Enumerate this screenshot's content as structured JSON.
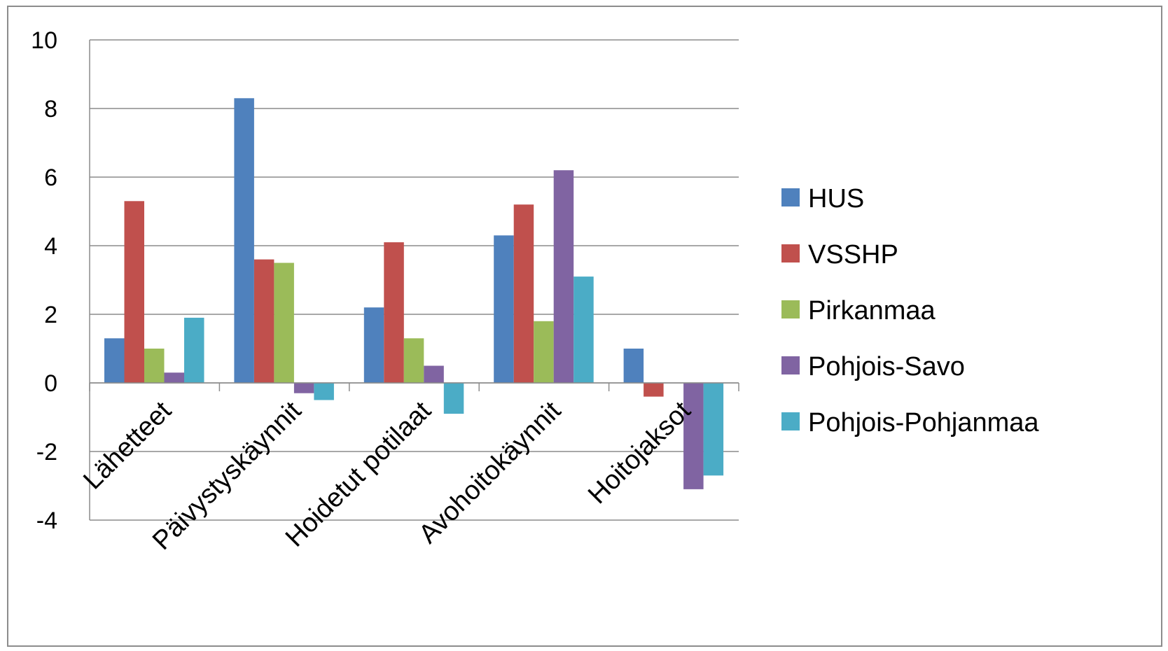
{
  "chart_data": {
    "type": "bar",
    "title": "",
    "xlabel": "",
    "ylabel": "",
    "categories": [
      "Lähetteet",
      "Päivystyskäynnit",
      "Hoidetut potilaat",
      "Avohoitokäynnit",
      "Hoitojaksot"
    ],
    "series": [
      {
        "name": "HUS",
        "color": "#4f81bd",
        "values": [
          1.3,
          8.3,
          2.2,
          4.3,
          1.0
        ]
      },
      {
        "name": "VSSHP",
        "color": "#c0504d",
        "values": [
          5.3,
          3.6,
          4.1,
          5.2,
          -0.4
        ]
      },
      {
        "name": "Pirkanmaa",
        "color": "#9bbb59",
        "values": [
          1.0,
          3.5,
          1.3,
          1.8,
          0.0
        ]
      },
      {
        "name": "Pohjois-Savo",
        "color": "#8064a2",
        "values": [
          0.3,
          -0.3,
          0.5,
          6.2,
          -3.1
        ]
      },
      {
        "name": "Pohjois-Pohjanmaa",
        "color": "#4bacc6",
        "values": [
          1.9,
          -0.5,
          -0.9,
          3.1,
          -2.7
        ]
      }
    ],
    "ylim": [
      -4,
      10
    ],
    "yticks": [
      10,
      8,
      6,
      4,
      2,
      0,
      -2,
      -4
    ],
    "grid": true,
    "legend_position": "right"
  }
}
